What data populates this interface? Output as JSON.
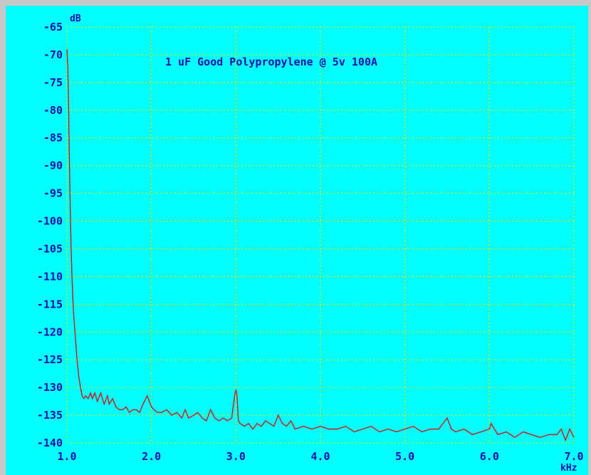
{
  "chart_data": {
    "type": "line",
    "title": "1 uF Good Polypropylene @ 5v 100A",
    "xlabel": "kHz",
    "ylabel": "dB",
    "xlim": [
      1.0,
      7.0
    ],
    "ylim": [
      -140,
      -65
    ],
    "grid": true,
    "x_ticks": [
      {
        "value": 1.0,
        "label": "1.0"
      },
      {
        "value": 2.0,
        "label": "2.0"
      },
      {
        "value": 3.0,
        "label": "3.0"
      },
      {
        "value": 4.0,
        "label": "4.0"
      },
      {
        "value": 5.0,
        "label": "5.0"
      },
      {
        "value": 6.0,
        "label": "6.0"
      },
      {
        "value": 7.0,
        "label": "7.0"
      }
    ],
    "y_ticks": [
      {
        "value": -65,
        "label": "-65"
      },
      {
        "value": -70,
        "label": "-70"
      },
      {
        "value": -75,
        "label": "-75"
      },
      {
        "value": -80,
        "label": "-80"
      },
      {
        "value": -85,
        "label": "-85"
      },
      {
        "value": -90,
        "label": "-90"
      },
      {
        "value": -95,
        "label": "-95"
      },
      {
        "value": -100,
        "label": "-100"
      },
      {
        "value": -105,
        "label": "-105"
      },
      {
        "value": -110,
        "label": "-110"
      },
      {
        "value": -115,
        "label": "-115"
      },
      {
        "value": -120,
        "label": "-120"
      },
      {
        "value": -125,
        "label": "-125"
      },
      {
        "value": -130,
        "label": "-130"
      },
      {
        "value": -135,
        "label": "-135"
      },
      {
        "value": -140,
        "label": "-140"
      }
    ],
    "colors": {
      "background": "#00ffff",
      "grid": "#e8e800",
      "line": "#cc1a1a",
      "text": "#1010b0",
      "frame": "#c8c8c8"
    },
    "series": [
      {
        "x": [
          1.0,
          1.01,
          1.02,
          1.03,
          1.04,
          1.05,
          1.06,
          1.07,
          1.08,
          1.1,
          1.12,
          1.14,
          1.16,
          1.18,
          1.2,
          1.22,
          1.25,
          1.28,
          1.3,
          1.33,
          1.36,
          1.4,
          1.44,
          1.48,
          1.5,
          1.54,
          1.58,
          1.62,
          1.66,
          1.7,
          1.74,
          1.78,
          1.82,
          1.86,
          1.9,
          1.95,
          2.0,
          2.03,
          2.07,
          2.12,
          2.18,
          2.24,
          2.3,
          2.36,
          2.4,
          2.44,
          2.5,
          2.55,
          2.6,
          2.65,
          2.7,
          2.75,
          2.8,
          2.85,
          2.9,
          2.95,
          2.99,
          3.0,
          3.01,
          3.03,
          3.05,
          3.1,
          3.15,
          3.2,
          3.25,
          3.3,
          3.35,
          3.4,
          3.45,
          3.5,
          3.55,
          3.6,
          3.65,
          3.7,
          3.8,
          3.9,
          4.0,
          4.1,
          4.2,
          4.3,
          4.4,
          4.5,
          4.6,
          4.7,
          4.8,
          4.9,
          5.0,
          5.1,
          5.2,
          5.3,
          5.4,
          5.5,
          5.55,
          5.6,
          5.7,
          5.8,
          5.9,
          6.0,
          6.02,
          6.1,
          6.2,
          6.3,
          6.4,
          6.5,
          6.6,
          6.7,
          6.8,
          6.85,
          6.9,
          6.95,
          7.0
        ],
        "values": [
          -69,
          -72,
          -80,
          -90,
          -98,
          -105,
          -110,
          -114,
          -117,
          -121,
          -125,
          -128,
          -130,
          -131.5,
          -132,
          -131.5,
          -132,
          -131,
          -132,
          -131,
          -132.5,
          -131,
          -133,
          -131.5,
          -133,
          -132,
          -133.5,
          -134,
          -134,
          -133.5,
          -134.5,
          -134,
          -134,
          -134.5,
          -133,
          -131.5,
          -133.5,
          -134,
          -134.5,
          -134.5,
          -134,
          -135,
          -134.5,
          -135.5,
          -134,
          -135.5,
          -135,
          -134.5,
          -135.5,
          -136,
          -134,
          -135.5,
          -136,
          -135.5,
          -136,
          -135.5,
          -131,
          -130.5,
          -131,
          -136,
          -136.5,
          -137,
          -136.5,
          -137.5,
          -136.5,
          -137,
          -136,
          -136.5,
          -137,
          -135,
          -136.5,
          -137,
          -136,
          -137.5,
          -137,
          -137.5,
          -137,
          -137.5,
          -137.5,
          -137,
          -138,
          -137.5,
          -137,
          -138,
          -137.5,
          -138,
          -137.5,
          -137,
          -138,
          -137.5,
          -137.5,
          -135.5,
          -137.5,
          -138,
          -137.5,
          -138.5,
          -138,
          -137.5,
          -136.5,
          -138.5,
          -138,
          -139,
          -138,
          -138.5,
          -139,
          -138.5,
          -138.5,
          -137.5,
          -139.5,
          -137.5,
          -139
        ]
      }
    ]
  }
}
